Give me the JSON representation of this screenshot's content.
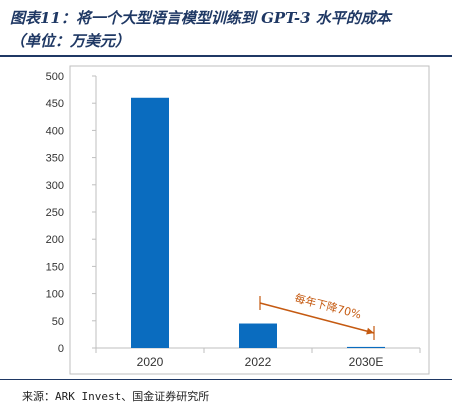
{
  "header": {
    "title": "图表11：将一个大型语言模型训练到 GPT-3 水平的成本",
    "subtitle": "（单位：万美元）"
  },
  "footer": {
    "source": "来源：ARK Invest、国金证券研究所"
  },
  "chart_data": {
    "type": "bar",
    "categories": [
      "2020",
      "2022",
      "2030E"
    ],
    "values": [
      460,
      45,
      2
    ],
    "ylim": [
      0,
      500
    ],
    "yticks": [
      0,
      50,
      100,
      150,
      200,
      250,
      300,
      350,
      400,
      450,
      500
    ],
    "grid": false,
    "legend": "none",
    "bar_color": "#0a6cbf",
    "annotation": {
      "text": "每年下降70%",
      "color": "#c55a11",
      "from": "2022",
      "to": "2030E"
    }
  }
}
